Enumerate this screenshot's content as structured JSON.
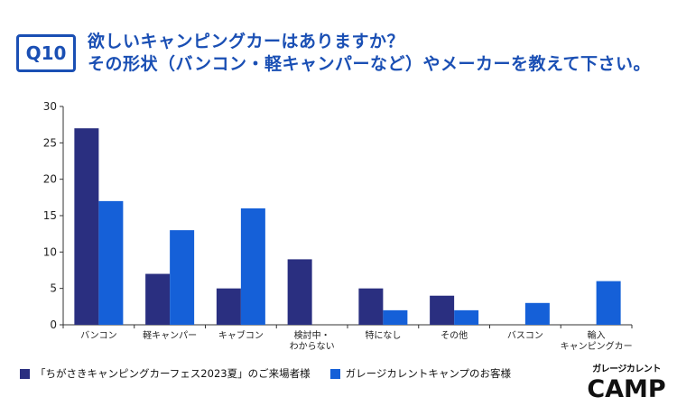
{
  "question": {
    "badge": "Q10",
    "line1": "欲しいキャンピングカーはありますか？",
    "line2": "その形状（バンコン・軽キャンパーなど）やメーカーを教えて下さい。"
  },
  "chart_data": {
    "type": "bar",
    "title": "欲しいキャンピングカーはありますか？その形状（バンコン・軽キャンパーなど）やメーカーを教えて下さい。",
    "xlabel": "",
    "ylabel": "",
    "ylim": [
      0,
      30
    ],
    "yticks": [
      0,
      5,
      10,
      15,
      20,
      25,
      30
    ],
    "categories": [
      [
        "バンコン"
      ],
      [
        "軽キャンパー"
      ],
      [
        "キャブコン"
      ],
      [
        "検討中・",
        "わからない"
      ],
      [
        "特になし"
      ],
      [
        "その他"
      ],
      [
        "バスコン"
      ],
      [
        "輸入",
        "キャンピングカー"
      ]
    ],
    "series": [
      {
        "name": "「ちがさきキャンピングカーフェス2023夏」のご来場者様",
        "color": "#2a2f80",
        "values": [
          27,
          7,
          5,
          9,
          5,
          4,
          0,
          0
        ]
      },
      {
        "name": "ガレージカレントキャンプのお客様",
        "color": "#1560d8",
        "values": [
          17,
          13,
          16,
          0,
          2,
          2,
          3,
          6
        ]
      }
    ],
    "legend_position": "bottom-left"
  },
  "logo": {
    "top_text": "ガレージカレント",
    "main_text": "CAMP"
  }
}
